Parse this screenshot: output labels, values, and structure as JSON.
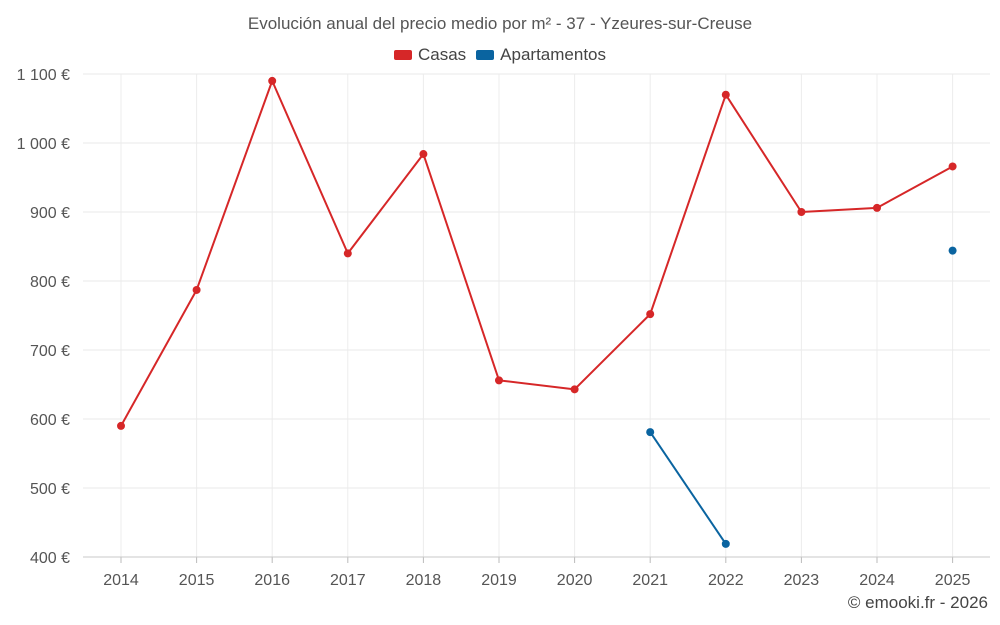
{
  "chart_data": {
    "type": "line",
    "title": "Evolución anual del precio medio por m² - 37 - Yzeures-sur-Creuse",
    "xlabel": "",
    "ylabel": "",
    "categories": [
      "2014",
      "2015",
      "2016",
      "2017",
      "2018",
      "2019",
      "2020",
      "2021",
      "2022",
      "2023",
      "2024",
      "2025"
    ],
    "ylim": [
      400,
      1100
    ],
    "yticks": [
      400,
      500,
      600,
      700,
      800,
      900,
      1000,
      1100
    ],
    "ytick_labels": [
      "400 €",
      "500 €",
      "600 €",
      "700 €",
      "800 €",
      "900 €",
      "1 000 €",
      "1 100 €"
    ],
    "grid": true,
    "legend_position": "top-center",
    "series": [
      {
        "name": "Casas",
        "color": "#d62728",
        "values": [
          590,
          787,
          1090,
          840,
          984,
          656,
          643,
          752,
          1070,
          900,
          906,
          966
        ]
      },
      {
        "name": "Apartamentos",
        "color": "#0a64a0",
        "values": [
          null,
          null,
          null,
          null,
          null,
          null,
          null,
          581,
          419,
          null,
          null,
          844
        ]
      }
    ]
  },
  "credit": "© emooki.fr - 2026"
}
